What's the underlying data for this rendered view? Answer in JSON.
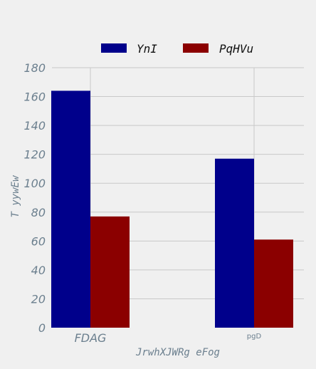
{
  "chart_data": {
    "type": "bar",
    "categories": [
      "FDAG",
      "pgD"
    ],
    "series": [
      {
        "name": "YnI",
        "values": [
          164,
          117
        ],
        "color": "#00008b"
      },
      {
        "name": "PqHVu",
        "values": [
          77,
          61
        ],
        "color": "#8b0000"
      }
    ],
    "xlabel": "JrwhXJWRg eFog",
    "ylabel": "T yywEw",
    "ylim": [
      0,
      180
    ],
    "yticks": [
      0,
      20,
      40,
      60,
      80,
      100,
      120,
      140,
      160,
      180
    ],
    "grid": true,
    "legend": "top-center"
  }
}
